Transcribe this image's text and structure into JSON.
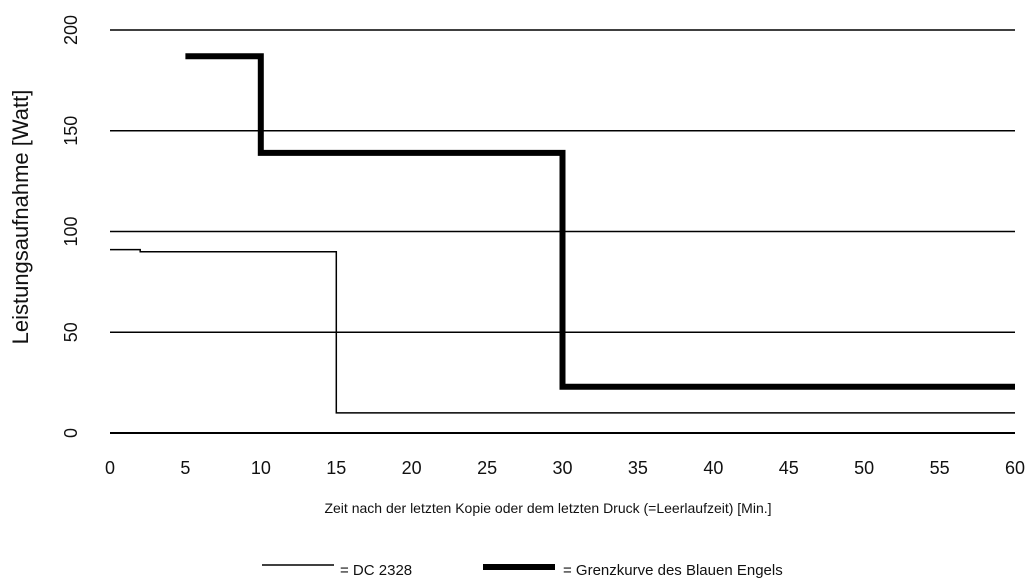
{
  "chart_data": {
    "type": "line",
    "title": "",
    "xlabel": "Zeit nach der letzten Kopie oder dem letzten Druck (=Leerlaufzeit) [Min.]",
    "ylabel": "Leistungsaufnahme [Watt]",
    "xlim": [
      0,
      60
    ],
    "ylim": [
      0,
      200
    ],
    "x_ticks": [
      0,
      5,
      10,
      15,
      20,
      25,
      30,
      35,
      40,
      45,
      50,
      55,
      60
    ],
    "y_ticks": [
      0,
      50,
      100,
      150,
      200
    ],
    "grid": "horizontal",
    "legend_position": "bottom",
    "series": [
      {
        "name": "DC 2328",
        "legend_label": "= DC 2328",
        "style": "thin",
        "color": "#000000",
        "x": [
          0,
          2,
          2,
          15,
          15,
          60
        ],
        "y": [
          91,
          91,
          90,
          90,
          10,
          10
        ]
      },
      {
        "name": "Grenzkurve des Blauen Engels",
        "legend_label": "= Grenzkurve des Blauen Engels",
        "style": "thick",
        "color": "#000000",
        "x": [
          5,
          10,
          10,
          30,
          30,
          60
        ],
        "y": [
          187,
          187,
          139,
          139,
          23,
          23
        ]
      }
    ]
  }
}
